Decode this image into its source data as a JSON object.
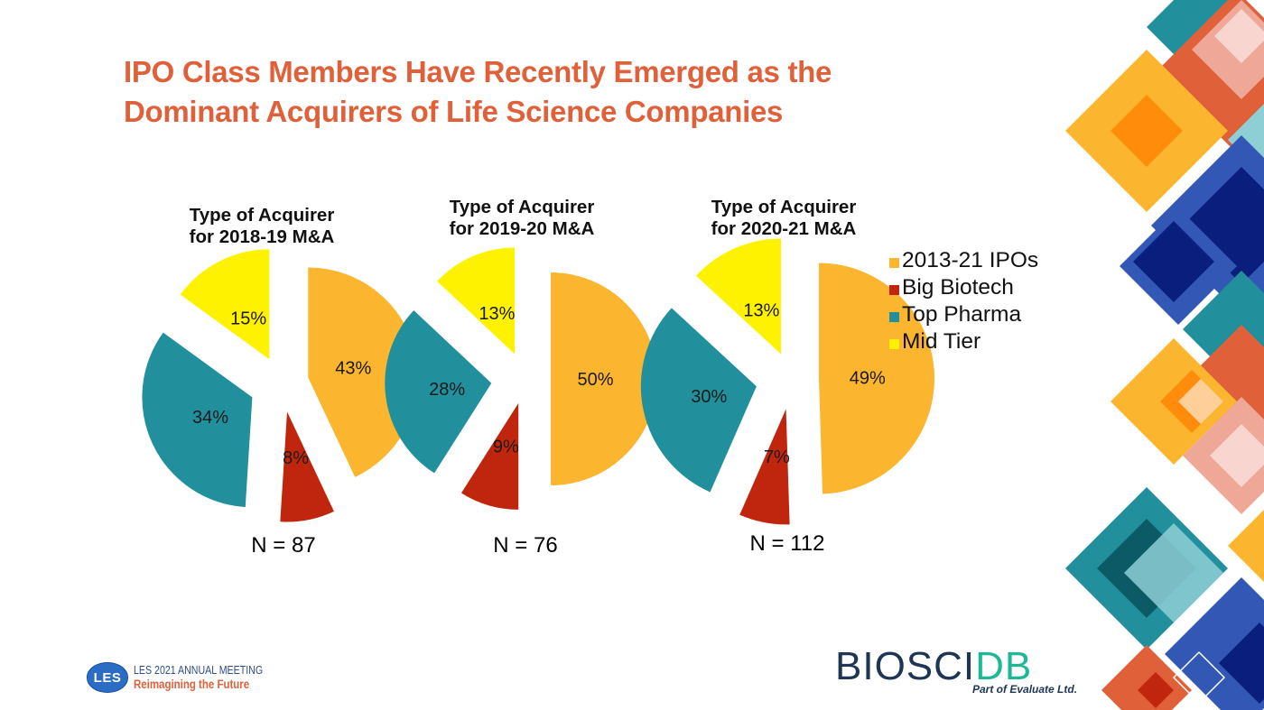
{
  "slide": {
    "title_lines": [
      "IPO Class Members Have Recently Emerged as the",
      "Dominant Acquirers of Life Science Companies"
    ]
  },
  "colors": {
    "title": "#E0603A",
    "ipos": "#FBB52F",
    "big_biotech": "#C0260D",
    "top_pharma": "#22909C",
    "mid_tier": "#FFF200"
  },
  "legend": {
    "items": [
      {
        "label": "2013-21 IPOs",
        "color": "#FBB52F"
      },
      {
        "label": "Big Biotech",
        "color": "#C0260D"
      },
      {
        "label": "Top Pharma",
        "color": "#22909C"
      },
      {
        "label": "Mid Tier",
        "color": "#FFF200"
      }
    ]
  },
  "chart_data": [
    {
      "type": "pie",
      "title": "Type of Acquirer for 2018-19 M&A",
      "title_lines": [
        "Type of Acquirer",
        "for 2018-19 M&A"
      ],
      "categories": [
        "2013-21 IPOs",
        "Big Biotech",
        "Top Pharma",
        "Mid Tier"
      ],
      "values": [
        43,
        8,
        34,
        15
      ],
      "labels": [
        "43%",
        "8%",
        "34%",
        "15%"
      ],
      "n_label": "N = 87",
      "exploded": true,
      "legend_placement": "right"
    },
    {
      "type": "pie",
      "title": "Type of Acquirer for 2019-20 M&A",
      "title_lines": [
        "Type of Acquirer",
        "for 2019-20 M&A"
      ],
      "categories": [
        "2013-21 IPOs",
        "Big Biotech",
        "Top Pharma",
        "Mid Tier"
      ],
      "values": [
        50,
        9,
        28,
        13
      ],
      "labels": [
        "50%",
        "9%",
        "28%",
        "13%"
      ],
      "n_label": "N = 76",
      "exploded": true,
      "legend_placement": "right"
    },
    {
      "type": "pie",
      "title": "Type of Acquirer for 2020-21 M&A",
      "title_lines": [
        "Type of Acquirer",
        "for 2020-21 M&A"
      ],
      "categories": [
        "2013-21 IPOs",
        "Big Biotech",
        "Top Pharma",
        "Mid Tier"
      ],
      "values": [
        49,
        7,
        30,
        13
      ],
      "labels": [
        "49%",
        "7%",
        "30%",
        "13%"
      ],
      "n_label": "N = 112",
      "exploded": true,
      "legend_placement": "right"
    }
  ],
  "footer": {
    "les_badge": "LES",
    "les_line1": "LES 2021 ANNUAL MEETING",
    "les_line2": "Reimagining the Future",
    "bio_part1": "BIO",
    "bio_part2": "SCI",
    "bio_part3": "DB",
    "bio_sub": "Part of Evaluate Ltd."
  }
}
